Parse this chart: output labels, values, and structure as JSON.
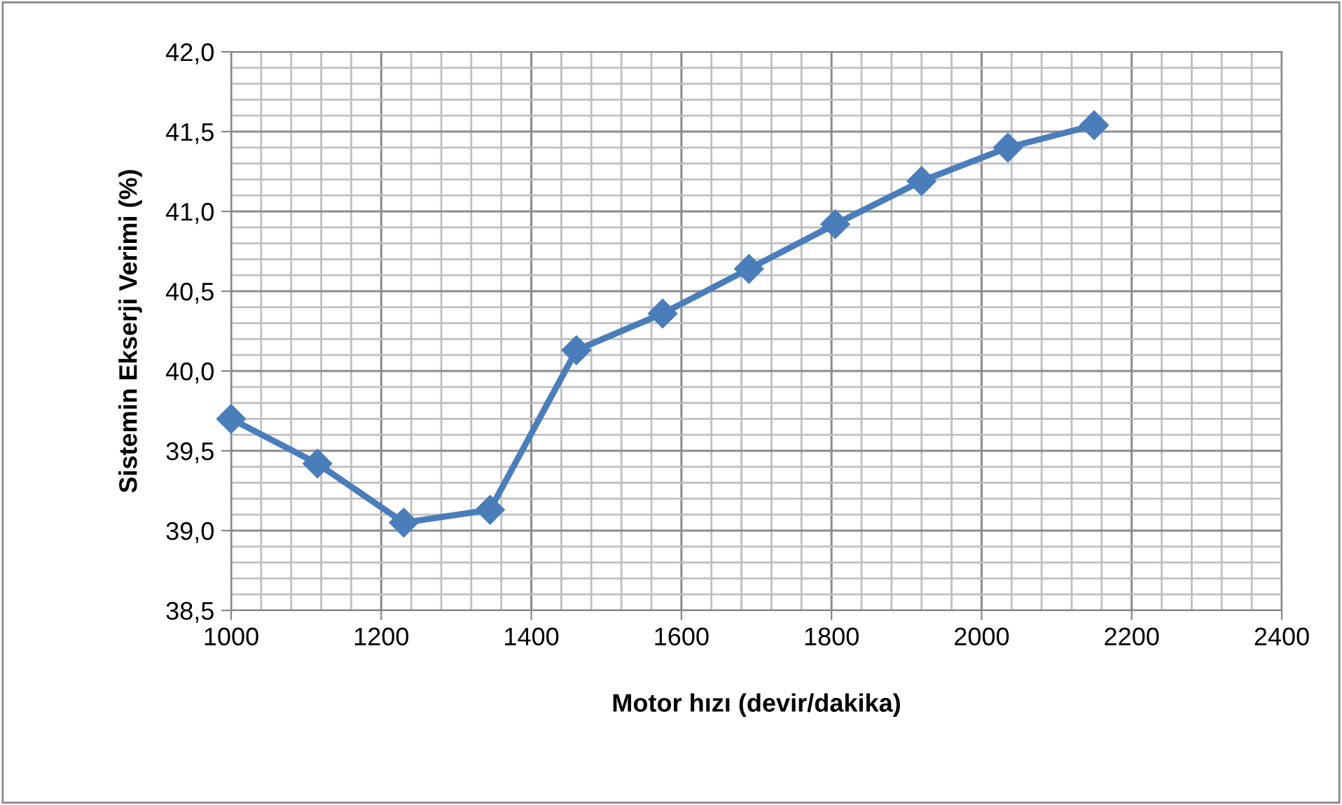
{
  "chart_data": {
    "type": "line",
    "xlabel": "Motor hızı (devir/dakika)",
    "ylabel": "Sistemin Ekserji Verimi (%)",
    "x": [
      1000,
      1115,
      1230,
      1345,
      1460,
      1575,
      1690,
      1805,
      1920,
      2035,
      2150
    ],
    "series": [
      {
        "color": "#4a7ebb",
        "values": [
          39.7,
          39.42,
          39.05,
          39.13,
          40.13,
          40.36,
          40.64,
          40.92,
          41.19,
          41.4,
          41.54
        ]
      }
    ],
    "xlim": [
      1000,
      2400
    ],
    "xticks": [
      1000,
      1200,
      1400,
      1600,
      1800,
      2000,
      2200,
      2400
    ],
    "ylim": [
      38.5,
      42.0
    ],
    "yticks": [
      {
        "value": 38.5,
        "label": "38,5"
      },
      {
        "value": 39.0,
        "label": "39,0"
      },
      {
        "value": 39.5,
        "label": "39,5"
      },
      {
        "value": 40.0,
        "label": "40,0"
      },
      {
        "value": 40.5,
        "label": "40,5"
      },
      {
        "value": 41.0,
        "label": "41,0"
      },
      {
        "value": 41.5,
        "label": "41,5"
      },
      {
        "value": 42.0,
        "label": "42,0"
      }
    ],
    "grid": true,
    "marker": "diamond",
    "line_style": "solid"
  }
}
